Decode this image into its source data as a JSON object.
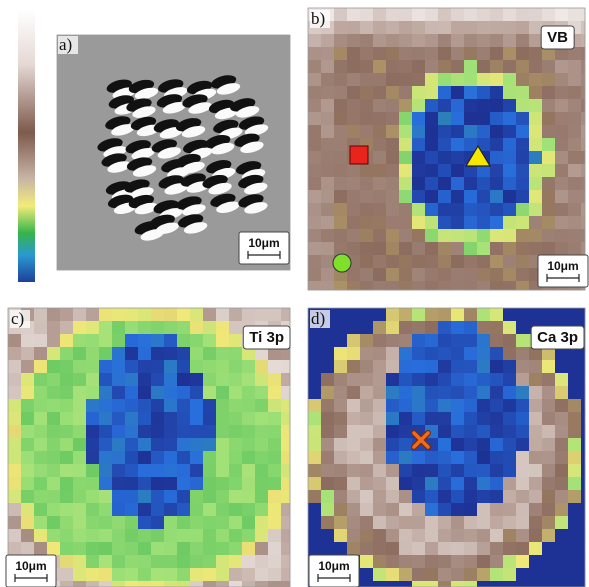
{
  "panels": [
    {
      "label": "a)",
      "scale": "10μm"
    },
    {
      "label": "b)",
      "title": "VB",
      "scale": "10μm"
    },
    {
      "label": "c)",
      "title": "Ti 3p",
      "scale": "10μm"
    },
    {
      "label": "d)",
      "title": "Ca 3p",
      "scale": "10μm"
    }
  ]
}
